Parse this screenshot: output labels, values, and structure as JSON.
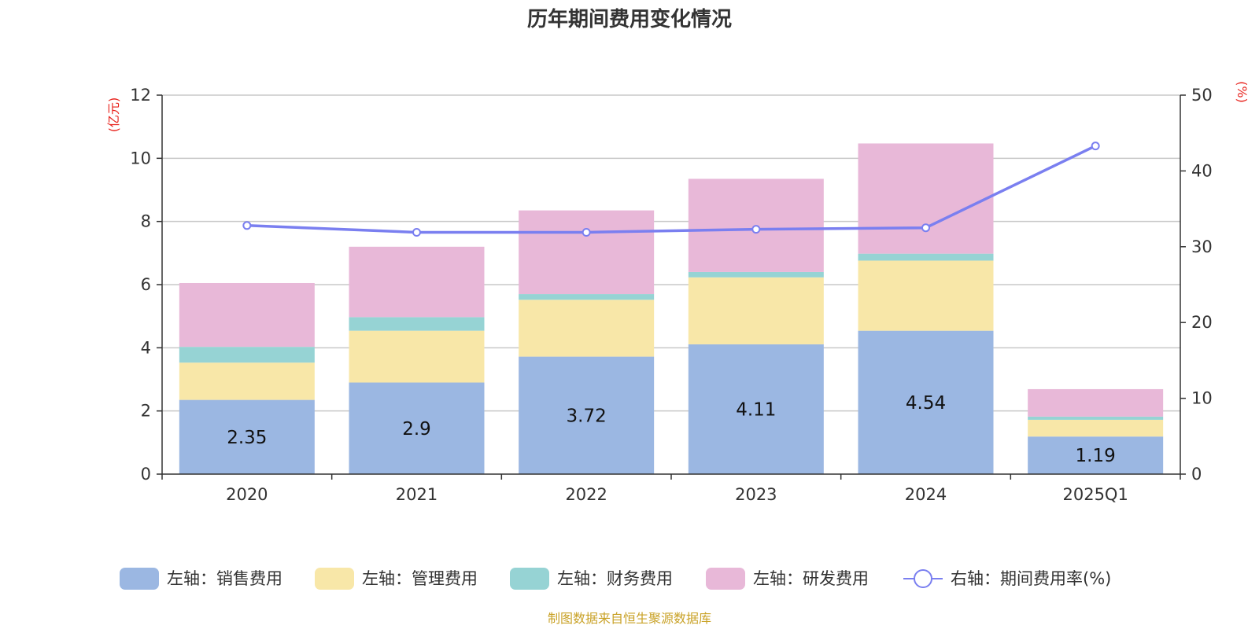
{
  "chart_data": {
    "type": "bar",
    "title": "历年期间费用变化情况",
    "categories": [
      "2020",
      "2021",
      "2022",
      "2023",
      "2024",
      "2025Q1"
    ],
    "y_left": {
      "unit": "(亿元)",
      "ylim": [
        0,
        12
      ],
      "ticks": [
        0,
        2,
        4,
        6,
        8,
        10,
        12
      ]
    },
    "y_right": {
      "unit": "(%)",
      "ylim": [
        0,
        50
      ],
      "ticks": [
        0,
        10,
        20,
        30,
        40,
        50
      ]
    },
    "grid": true,
    "legend_position": "bottom",
    "series": [
      {
        "name": "左轴：销售费用",
        "type": "bar",
        "stack": "total",
        "axis": "left",
        "color": "#9bb7e2",
        "values": [
          2.35,
          2.9,
          3.72,
          4.11,
          4.54,
          1.19
        ],
        "labels": [
          "2.35",
          "2.9",
          "3.72",
          "4.11",
          "4.54",
          "1.19"
        ]
      },
      {
        "name": "左轴：管理费用",
        "type": "bar",
        "stack": "total",
        "axis": "left",
        "color": "#f8e7a8",
        "values": [
          1.18,
          1.64,
          1.8,
          2.12,
          2.22,
          0.53
        ]
      },
      {
        "name": "左轴：财务费用",
        "type": "bar",
        "stack": "total",
        "axis": "left",
        "color": "#96d3d4",
        "values": [
          0.5,
          0.43,
          0.18,
          0.17,
          0.22,
          0.1
        ]
      },
      {
        "name": "左轴：研发费用",
        "type": "bar",
        "stack": "total",
        "axis": "left",
        "color": "#e8b8d8",
        "values": [
          2.02,
          2.23,
          2.65,
          2.95,
          3.49,
          0.87
        ]
      },
      {
        "name": "右轴：期间费用率(%)",
        "type": "line",
        "axis": "right",
        "color": "#7a7ff0",
        "values": [
          32.8,
          31.9,
          31.9,
          32.3,
          32.5,
          43.3
        ]
      }
    ],
    "source": "制图数据来自恒生聚源数据库"
  }
}
